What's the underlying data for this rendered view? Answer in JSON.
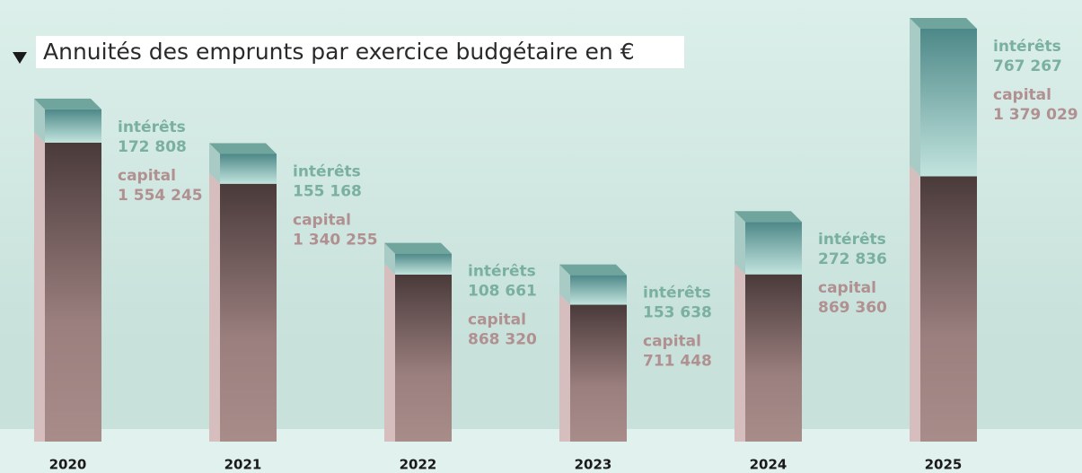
{
  "chart_data": {
    "type": "bar",
    "stacked": true,
    "title": "Annuités des emprunts par exercice budgétaire en €",
    "categories": [
      "2020",
      "2021",
      "2022",
      "2023",
      "2024",
      "2025"
    ],
    "series": [
      {
        "name": "capital",
        "color": "#b09090",
        "values": [
          1554245,
          1340255,
          868320,
          711448,
          869360,
          1379029
        ],
        "value_labels": [
          "1 554 245",
          "1 340 255",
          "868 320",
          "711 448",
          "869 360",
          "1 379 029"
        ]
      },
      {
        "name": "intérêts",
        "color": "#7ab0a0",
        "values": [
          172808,
          155168,
          108661,
          153638,
          272836,
          767267
        ],
        "value_labels": [
          "172 808",
          "155 168",
          "108 661",
          "153 638",
          "272 836",
          "767 267"
        ]
      }
    ]
  }
}
